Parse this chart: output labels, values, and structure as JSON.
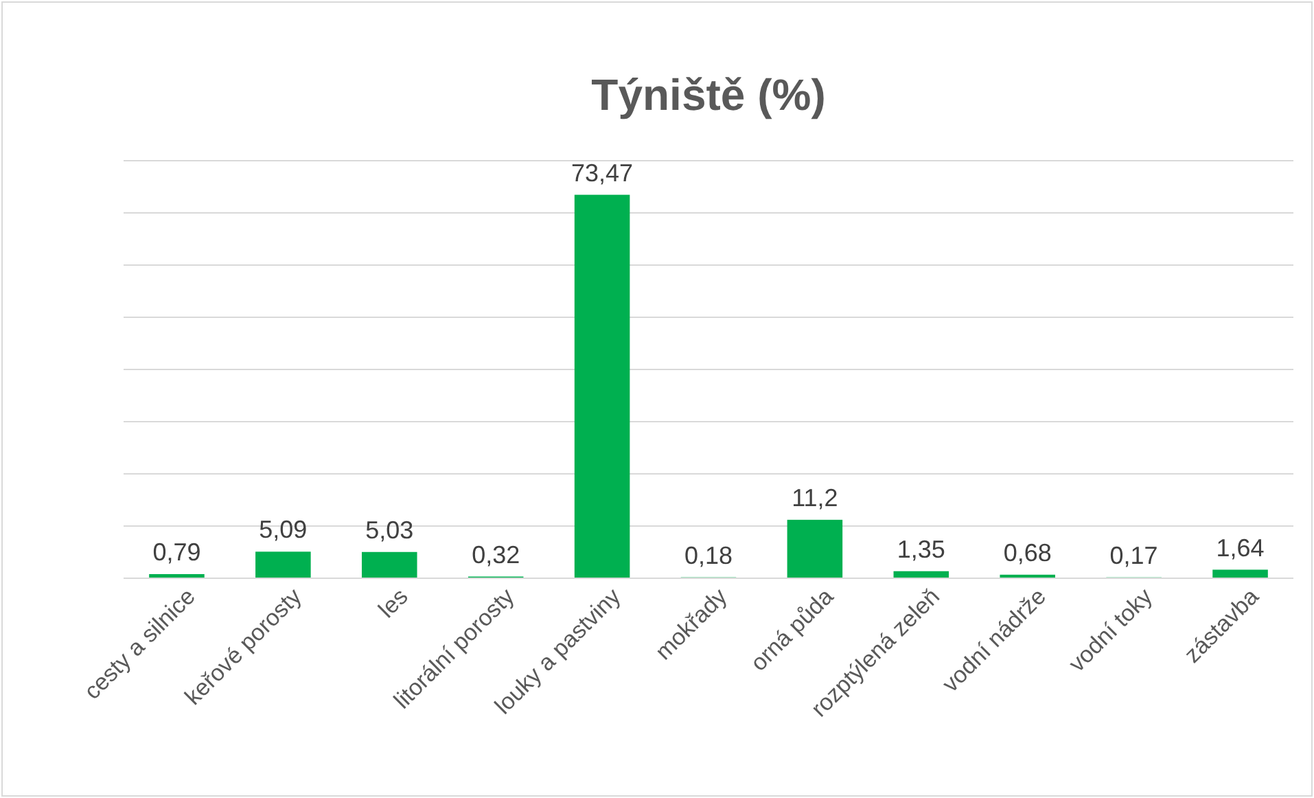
{
  "chart_data": {
    "type": "bar",
    "title": "Týniště (%)",
    "categories": [
      "cesty a silnice",
      "keřové porosty",
      "les",
      "litorální porosty",
      "louky a pastviny",
      "mokřady",
      "orná půda",
      "rozptýlená zeleň",
      "vodní nádrže",
      "vodní toky",
      "zástavba"
    ],
    "values": [
      0.79,
      5.09,
      5.03,
      0.32,
      73.47,
      0.18,
      11.2,
      1.35,
      0.68,
      0.17,
      1.64
    ],
    "value_labels": [
      "0,79",
      "5,09",
      "5,03",
      "0,32",
      "73,47",
      "0,18",
      "11,2",
      "1,35",
      "0,68",
      "0,17",
      "1,64"
    ],
    "color": "#00b050",
    "ylim": [
      0,
      80
    ],
    "yticks": [
      {
        "value": 0,
        "label": null
      },
      {
        "value": 10,
        "label": null
      },
      {
        "value": 20,
        "label": null
      },
      {
        "value": 30,
        "label": null
      },
      {
        "value": 40,
        "label": null
      },
      {
        "value": 50,
        "label": null
      },
      {
        "value": 60,
        "label": null
      },
      {
        "value": 70,
        "label": null
      },
      {
        "value": 80,
        "label": null
      }
    ],
    "tick_labels": "x",
    "grid": "y"
  }
}
